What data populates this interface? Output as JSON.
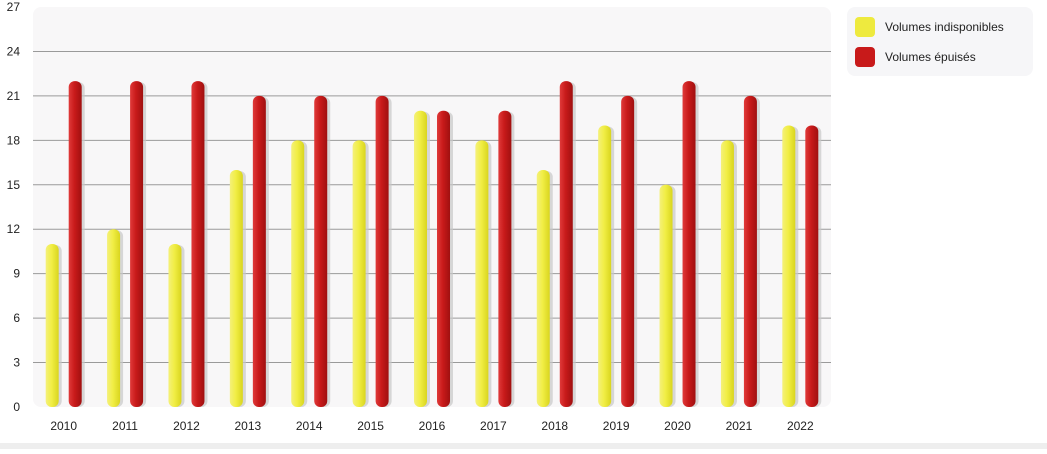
{
  "chart_data": {
    "type": "bar",
    "categories": [
      "2010",
      "2011",
      "2012",
      "2013",
      "2014",
      "2015",
      "2016",
      "2017",
      "2018",
      "2019",
      "2020",
      "2021",
      "2022"
    ],
    "series": [
      {
        "name": "Volumes indisponibles",
        "color": "#eeea3e",
        "values": [
          11,
          12,
          11,
          16,
          18,
          18,
          20,
          18,
          16,
          19,
          15,
          18,
          19
        ]
      },
      {
        "name": "Volumes épuisés",
        "color": "#c81a1a",
        "values": [
          22,
          22,
          22,
          21,
          21,
          21,
          20,
          20,
          22,
          21,
          22,
          21,
          19
        ]
      }
    ],
    "yticks": [
      "0",
      "3",
      "6",
      "9",
      "12",
      "15",
      "18",
      "21",
      "24",
      "27"
    ],
    "ylim": [
      0,
      27
    ],
    "grid": true,
    "legend": "top-right"
  }
}
